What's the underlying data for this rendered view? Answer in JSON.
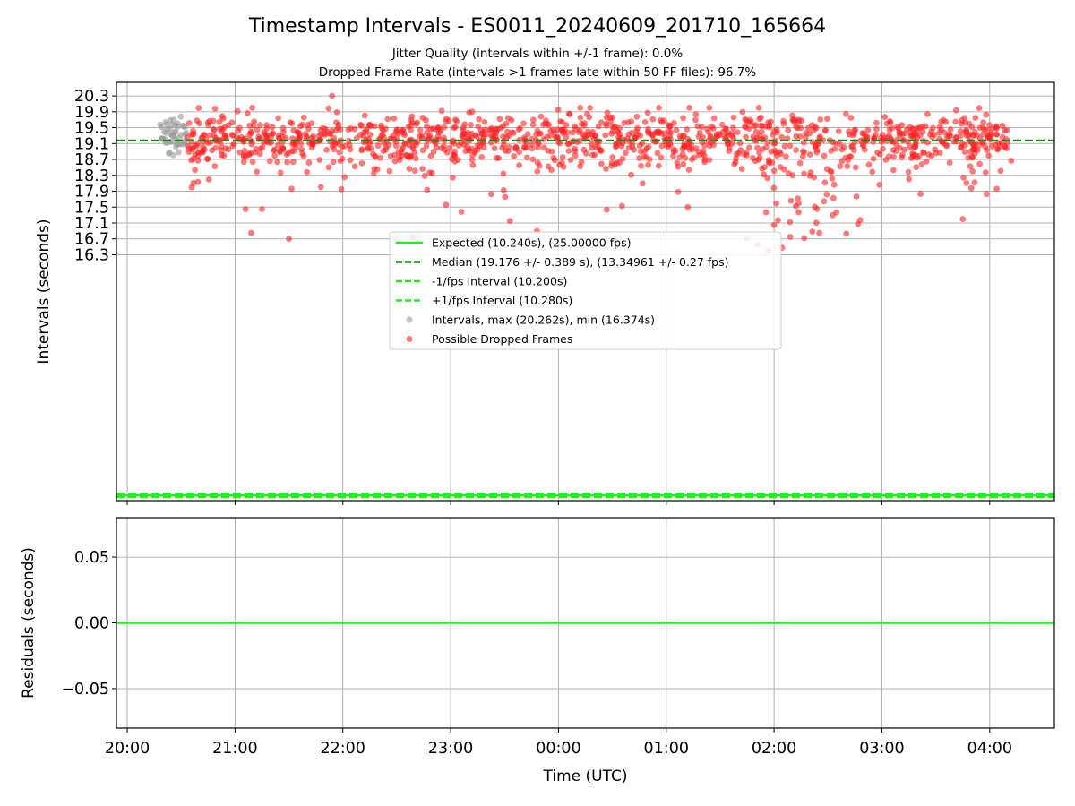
{
  "title": "Timestamp Intervals - ES0011_20240609_201710_165664",
  "subtitle_1": "Jitter Quality (intervals within +/-1 frame): 0.0%",
  "subtitle_2": "Dropped Frame Rate (intervals >1 frames late within 50 FF files): 96.7%",
  "colors": {
    "expected": "#22ee22",
    "median": "#118811",
    "interval_lines": "#22ee22",
    "normal_points": "#999999",
    "dropped_points": "#ff2222",
    "grid": "#b0b0b0"
  },
  "chart_data": [
    {
      "type": "scatter",
      "name": "intervals-panel",
      "xlabel": "",
      "ylabel": "Intervals (seconds)",
      "x_unit": "hours since 20:00 UTC",
      "xlim": [
        -0.1,
        8.6
      ],
      "ylim": [
        10.11,
        20.64
      ],
      "yticks": [
        16.3,
        16.7,
        17.1,
        17.5,
        17.9,
        18.3,
        18.7,
        19.1,
        19.5,
        19.9,
        20.3
      ],
      "ytick_labels": [
        "16.3",
        "16.7",
        "17.1",
        "17.5",
        "17.9",
        "18.3",
        "18.7",
        "19.1",
        "19.5",
        "19.9",
        "20.3"
      ],
      "xticks": [
        0,
        1,
        2,
        3,
        4,
        5,
        6,
        7,
        8
      ],
      "grid": true,
      "reference_lines": [
        {
          "name": "Expected (10.240s), (25.00000 fps)",
          "y": 10.24,
          "style": "solid",
          "color": "#22ee22"
        },
        {
          "name": "Median (19.176 +/- 0.389 s), (13.34961 +/- 0.27 fps)",
          "y": 19.176,
          "style": "dashed",
          "color": "#118811"
        },
        {
          "name": "-1/fps Interval (10.200s)",
          "y": 10.2,
          "style": "dashed",
          "color": "#22ee22"
        },
        {
          "name": "+1/fps Interval (10.280s)",
          "y": 10.28,
          "style": "dashed",
          "color": "#22ee22"
        }
      ],
      "series": [
        {
          "name": "Intervals, max (20.262s), min (16.374s)",
          "color": "#999999",
          "x_range": [
            0.3,
            0.55
          ],
          "count": 50,
          "y_center": 19.3,
          "y_spread": 0.25
        },
        {
          "name": "Possible Dropped Frames",
          "color": "#ff2222",
          "x_range": [
            0.55,
            8.2
          ],
          "count": 1300,
          "y_center": 19.25,
          "y_spread": 0.3,
          "outliers": [
            {
              "x": 1.15,
              "y": 16.85
            },
            {
              "x": 1.25,
              "y": 17.45
            },
            {
              "x": 1.5,
              "y": 16.7
            },
            {
              "x": 1.9,
              "y": 20.3
            },
            {
              "x": 2.5,
              "y": 16.62
            },
            {
              "x": 2.65,
              "y": 16.75
            },
            {
              "x": 3.55,
              "y": 17.15
            },
            {
              "x": 3.8,
              "y": 16.9
            },
            {
              "x": 5.2,
              "y": 17.5
            },
            {
              "x": 5.75,
              "y": 16.7
            },
            {
              "x": 5.85,
              "y": 16.55
            },
            {
              "x": 5.95,
              "y": 16.4
            },
            {
              "x": 6.0,
              "y": 17.05
            },
            {
              "x": 6.15,
              "y": 16.75
            },
            {
              "x": 6.28,
              "y": 16.72
            },
            {
              "x": 6.42,
              "y": 16.85
            },
            {
              "x": 7.75,
              "y": 17.2
            },
            {
              "x": 5.4,
              "y": 20.0
            },
            {
              "x": 4.1,
              "y": 19.85
            },
            {
              "x": 3.2,
              "y": 19.9
            }
          ]
        }
      ],
      "legend": {
        "placement": "center",
        "entries": [
          {
            "label": "Expected (10.240s), (25.00000 fps)",
            "kind": "line-solid",
            "color": "#22ee22"
          },
          {
            "label": "Median (19.176 +/- 0.389 s), (13.34961 +/- 0.27 fps)",
            "kind": "line-dashed",
            "color": "#118811"
          },
          {
            "label": "-1/fps Interval (10.200s)",
            "kind": "line-dashed",
            "color": "#22ee22"
          },
          {
            "label": "+1/fps Interval (10.280s)",
            "kind": "line-dashed",
            "color": "#22ee22"
          },
          {
            "label": "Intervals, max (20.262s), min (16.374s)",
            "kind": "dot",
            "color": "#999999"
          },
          {
            "label": "Possible Dropped Frames",
            "kind": "dot",
            "color": "#ff2222"
          }
        ]
      }
    },
    {
      "type": "line",
      "name": "residuals-panel",
      "xlabel": "Time (UTC)",
      "ylabel": "Residuals (seconds)",
      "xlim": [
        -0.1,
        8.6
      ],
      "ylim": [
        -0.08,
        0.08
      ],
      "yticks": [
        -0.05,
        0.0,
        0.05
      ],
      "ytick_labels": [
        "−0.05",
        "0.00",
        "0.05"
      ],
      "xticks": [
        0,
        1,
        2,
        3,
        4,
        5,
        6,
        7,
        8
      ],
      "xtick_labels": [
        "20:00",
        "21:00",
        "22:00",
        "23:00",
        "00:00",
        "01:00",
        "02:00",
        "03:00",
        "04:00"
      ],
      "grid": true,
      "series": [
        {
          "name": "residual",
          "color": "#22ee22",
          "x": [
            -0.1,
            8.6
          ],
          "y": [
            0.0,
            0.0
          ]
        }
      ]
    }
  ]
}
